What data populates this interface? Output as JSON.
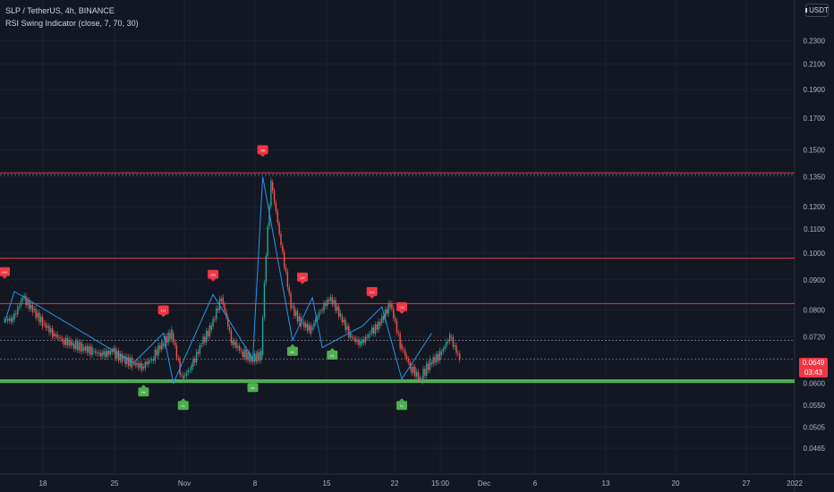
{
  "header": {
    "symbol_line": "SLP / TetherUS, 4h, BINANCE",
    "indicator_line": "RSI Swing Indicator (close, 7, 70, 30)",
    "currency_button": "USDT"
  },
  "price_scale": {
    "current_price": "0.0649",
    "countdown": "03:43"
  },
  "colors": {
    "background": "#131722",
    "grid": "#1e222d",
    "up": "#26a69a",
    "down": "#ef5350",
    "swing_line": "#2196f3",
    "resistance": "#f23645",
    "support": "#4caf50",
    "high_marker": "#f23645",
    "low_marker": "#4caf50"
  },
  "chart_data": {
    "type": "line",
    "symbol": "SLP/USDT",
    "timeframe": "4h",
    "y_scale": "log",
    "ylim": [
      0.042,
      0.27
    ],
    "y_ticks": [
      "0.2300",
      "0.2100",
      "0.1900",
      "0.1700",
      "0.1500",
      "0.1350",
      "0.1200",
      "0.1100",
      "0.1000",
      "0.0900",
      "0.0800",
      "0.0720",
      "0.0649",
      "0.0600",
      "0.0550",
      "0.0505",
      "0.0465"
    ],
    "x_ticks": [
      "18",
      "25",
      "Nov",
      "8",
      "15",
      "22",
      "15:00",
      "Dec",
      "6",
      "13",
      "20",
      "27",
      "2022"
    ],
    "price_series": {
      "name": "SLP",
      "x": [
        "Oct 11",
        "Oct 12",
        "Oct 13",
        "Oct 14",
        "Oct 15",
        "Oct 16",
        "Oct 17",
        "Oct 18",
        "Oct 19",
        "Oct 20",
        "Oct 21",
        "Oct 22",
        "Oct 23",
        "Oct 24",
        "Oct 25",
        "Oct 26",
        "Oct 27",
        "Oct 28",
        "Oct 29",
        "Oct 30",
        "Oct 31",
        "Nov 1",
        "Nov 2",
        "Nov 3",
        "Nov 4",
        "Nov 5",
        "Nov 6",
        "Nov 7",
        "Nov 8",
        "Nov 9",
        "Nov 10",
        "Nov 11",
        "Nov 12",
        "Nov 13",
        "Nov 14",
        "Nov 15",
        "Nov 16",
        "Nov 17",
        "Nov 18",
        "Nov 19",
        "Nov 20",
        "Nov 21",
        "Nov 22",
        "Nov 23",
        "Nov 24",
        "Nov 25"
      ],
      "values": [
        0.077,
        0.084,
        0.08,
        0.076,
        0.073,
        0.071,
        0.07,
        0.069,
        0.068,
        0.067,
        0.068,
        0.066,
        0.065,
        0.064,
        0.066,
        0.07,
        0.073,
        0.061,
        0.064,
        0.07,
        0.075,
        0.084,
        0.071,
        0.068,
        0.066,
        0.067,
        0.132,
        0.103,
        0.081,
        0.076,
        0.074,
        0.08,
        0.084,
        0.078,
        0.072,
        0.07,
        0.073,
        0.076,
        0.082,
        0.07,
        0.064,
        0.061,
        0.065,
        0.067,
        0.072,
        0.066
      ]
    },
    "swing_line": {
      "name": "",
      "x": [
        "Oct 11",
        "Oct 12",
        "Oct 24",
        "Oct 27",
        "Oct 28",
        "Nov 1",
        "Nov 5",
        "Nov 6",
        "Nov 9",
        "Nov 11",
        "Nov 12",
        "Nov 14",
        "Nov 16",
        "Nov 18",
        "Nov 20",
        "Nov 23"
      ],
      "values": [
        0.076,
        0.086,
        0.065,
        0.073,
        0.06,
        0.085,
        0.066,
        0.135,
        0.071,
        0.084,
        0.069,
        0.072,
        0.075,
        0.081,
        0.061,
        0.073
      ]
    },
    "horizontal_levels": [
      {
        "kind": "resistance",
        "value": 0.137
      },
      {
        "kind": "resistance",
        "value": 0.098
      },
      {
        "kind": "resistance",
        "value": 0.082
      },
      {
        "kind": "support",
        "value": 0.0605
      }
    ],
    "dotted_levels": [
      0.136,
      0.071,
      0.066
    ],
    "annotations": [
      {
        "label": "HH",
        "kind": "high",
        "x": "Oct 11",
        "value": 0.093
      },
      {
        "label": "LH",
        "kind": "high",
        "x": "Oct 27",
        "value": 0.08
      },
      {
        "label": "HH",
        "kind": "high",
        "x": "Nov 1",
        "value": 0.092
      },
      {
        "label": "HH",
        "kind": "high",
        "x": "Nov 6",
        "value": 0.15
      },
      {
        "label": "LH",
        "kind": "high",
        "x": "Nov 10",
        "value": 0.091
      },
      {
        "label": "LH",
        "kind": "high",
        "x": "Nov 17",
        "value": 0.086
      },
      {
        "label": "LH",
        "kind": "high",
        "x": "Nov 20",
        "value": 0.081
      },
      {
        "label": "HL",
        "kind": "low",
        "x": "Oct 25",
        "value": 0.058
      },
      {
        "label": "LL",
        "kind": "low",
        "x": "Oct 29",
        "value": 0.055
      },
      {
        "label": "HL",
        "kind": "low",
        "x": "Nov 5",
        "value": 0.059
      },
      {
        "label": "HL",
        "kind": "low",
        "x": "Nov 9",
        "value": 0.068
      },
      {
        "label": "HL",
        "kind": "low",
        "x": "Nov 13",
        "value": 0.067
      },
      {
        "label": "LL",
        "kind": "low",
        "x": "Nov 20",
        "value": 0.055
      }
    ]
  }
}
